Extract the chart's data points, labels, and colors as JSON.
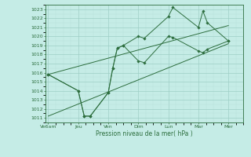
{
  "xlabel": "Pression niveau de la mer( hPa )",
  "background_color": "#c5ece6",
  "grid_major_color": "#9ecec6",
  "grid_minor_color": "#b8e0da",
  "line_color": "#2d6e3e",
  "ylim": [
    1010.5,
    1023.5
  ],
  "yticks": [
    1011,
    1012,
    1013,
    1014,
    1015,
    1016,
    1017,
    1018,
    1019,
    1020,
    1021,
    1022,
    1023
  ],
  "x_labels": [
    "Ve6am",
    "Jeu",
    "Ven",
    "Dim",
    "Lun",
    "Mar",
    "Mer"
  ],
  "x_positions": [
    0,
    2,
    4,
    6,
    8,
    10,
    12
  ],
  "xlim": [
    -0.2,
    13.0
  ],
  "series1_x": [
    0,
    2,
    2.4,
    2.8,
    4.0,
    4.3,
    4.6,
    5.0,
    6.0,
    6.4,
    8.0,
    8.3,
    10.0,
    10.3,
    10.6,
    12.0
  ],
  "series1_y": [
    1015.8,
    1014.0,
    1011.2,
    1011.2,
    1013.8,
    1016.5,
    1018.7,
    1019.0,
    1017.3,
    1017.1,
    1020.0,
    1019.9,
    1018.4,
    1018.2,
    1018.6,
    1019.5
  ],
  "series2_x": [
    0,
    2,
    2.4,
    2.8,
    4.0,
    4.3,
    4.6,
    5.0,
    6.0,
    6.4,
    8.0,
    8.3,
    10.0,
    10.3,
    10.6,
    12.0
  ],
  "series2_y": [
    1015.8,
    1014.0,
    1011.2,
    1011.2,
    1013.8,
    1016.5,
    1018.7,
    1019.0,
    1020.0,
    1019.8,
    1022.2,
    1023.2,
    1021.0,
    1022.8,
    1021.5,
    1019.5
  ],
  "trend1_x": [
    0,
    12
  ],
  "trend1_y": [
    1015.8,
    1021.2
  ],
  "trend2_x": [
    0,
    12
  ],
  "trend2_y": [
    1011.2,
    1019.2
  ]
}
